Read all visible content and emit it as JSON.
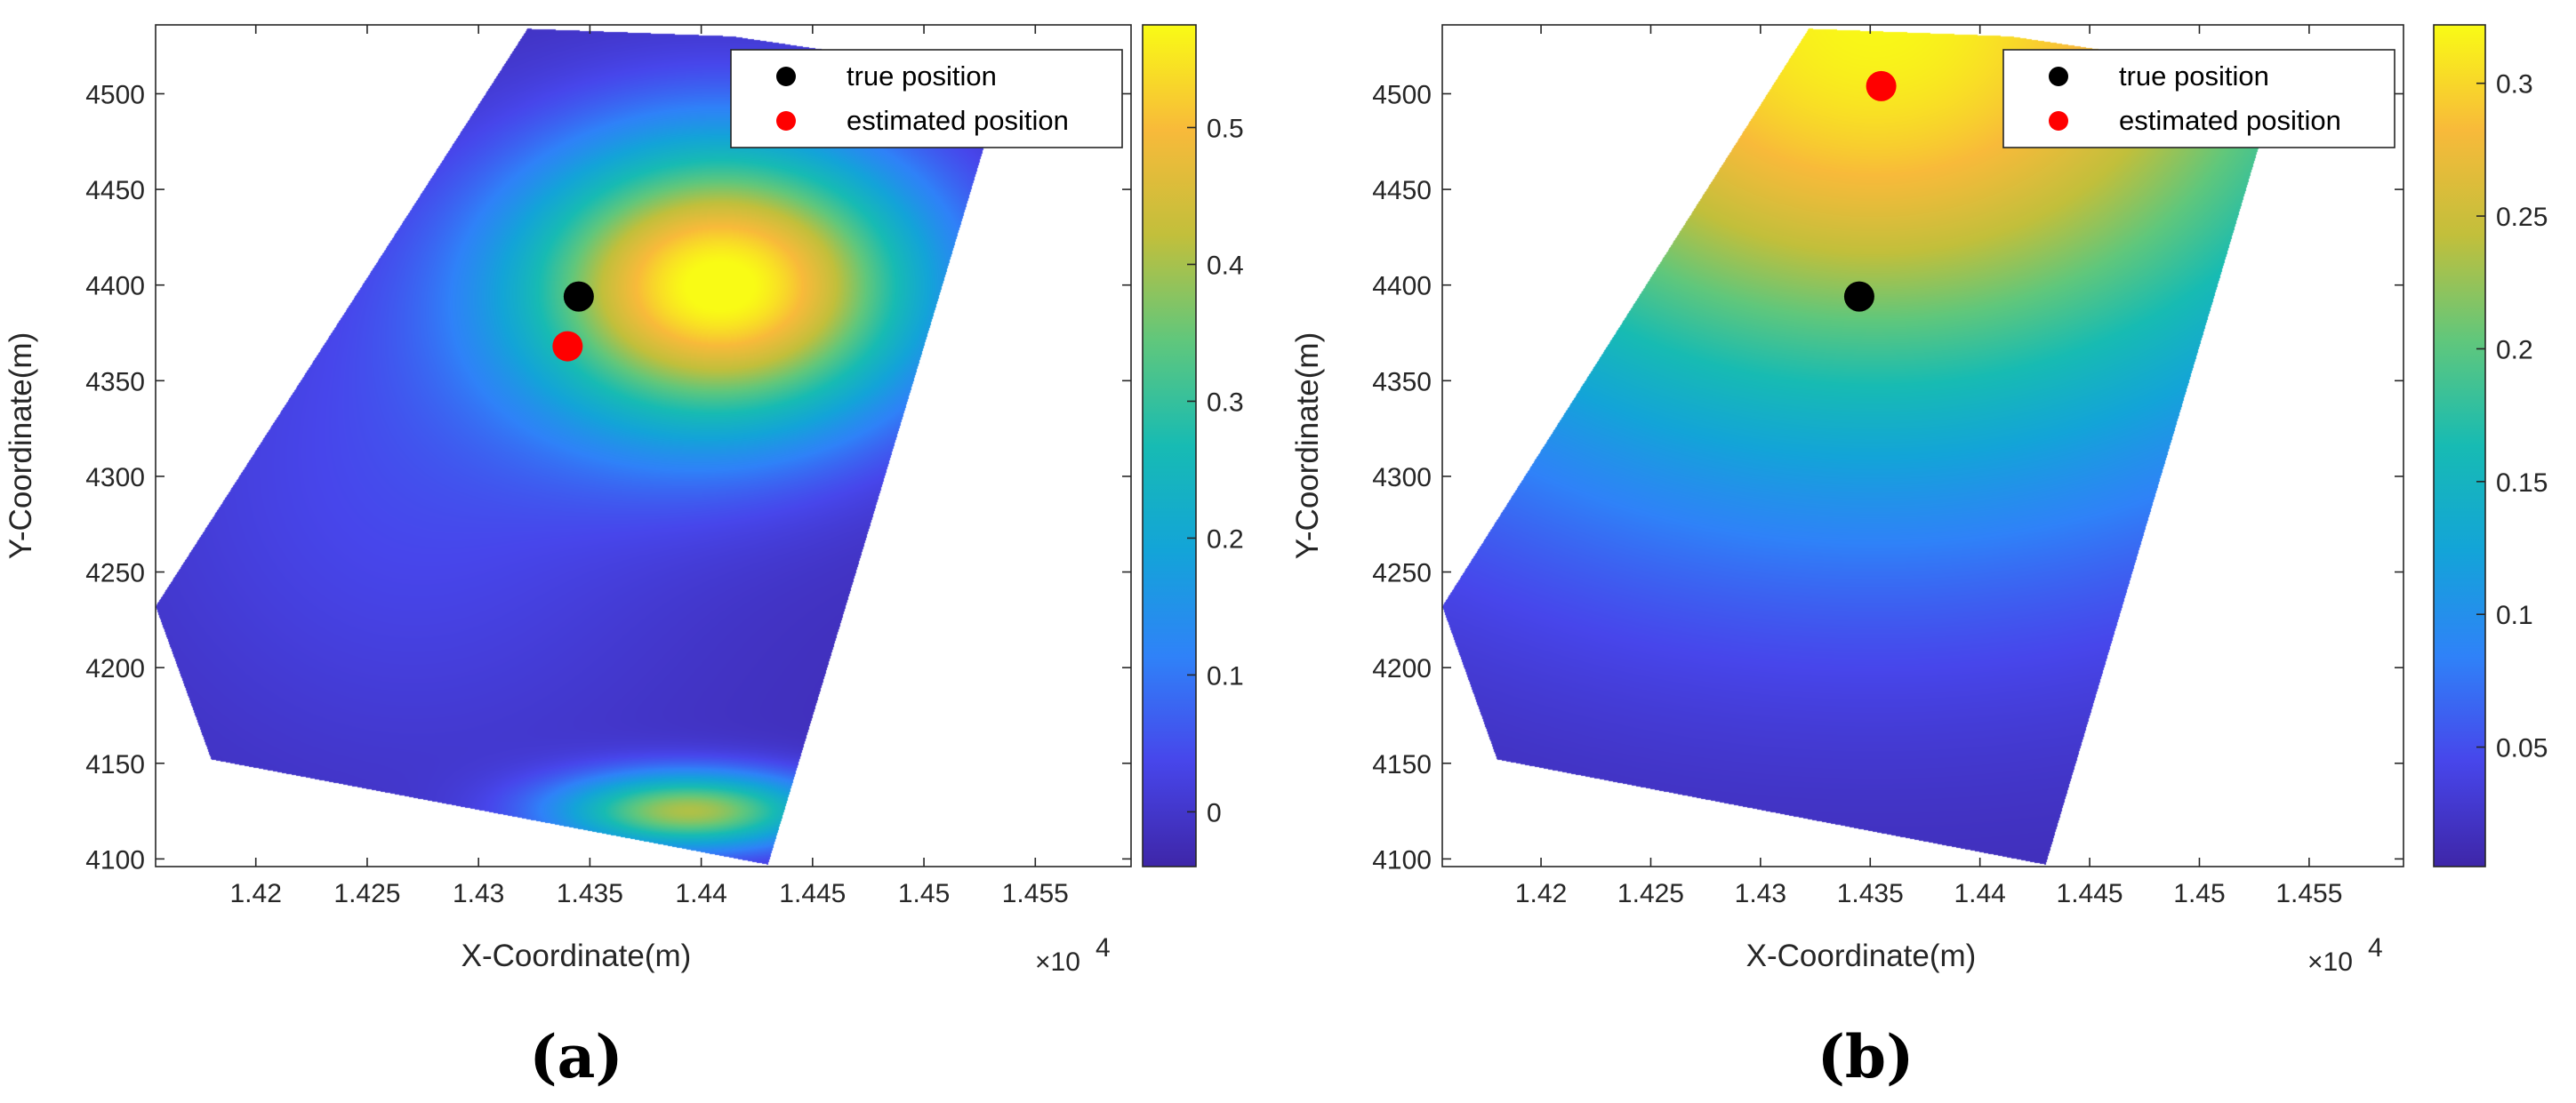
{
  "colors": {
    "true_marker": "#000000",
    "estimated_marker": "#ff0000",
    "axis": "#262626",
    "colormap": "parula"
  },
  "chart_data": [
    {
      "type": "heatmap",
      "panel_label": "(a)",
      "xlabel": "X-Coordinate(m)",
      "ylabel": "Y-Coordinate(m)",
      "x_exponent_label": "×10",
      "x_exponent_power": "4",
      "xlim": [
        14155,
        14593
      ],
      "ylim": [
        4096,
        4536
      ],
      "xticks": [
        14200,
        14250,
        14300,
        14350,
        14400,
        14450,
        14500,
        14550
      ],
      "xtick_labels": [
        "1.42",
        "1.425",
        "1.43",
        "1.435",
        "1.44",
        "1.445",
        "1.45",
        "1.455"
      ],
      "yticks": [
        4100,
        4150,
        4200,
        4250,
        4300,
        4350,
        4400,
        4450,
        4500
      ],
      "ytick_labels": [
        "4100",
        "4150",
        "4200",
        "4250",
        "4300",
        "4350",
        "4400",
        "4450",
        "4500"
      ],
      "region": [
        [
          14322,
          4534
        ],
        [
          14414,
          4530
        ],
        [
          14585,
          4501
        ],
        [
          14528,
          4476
        ],
        [
          14430,
          4097
        ],
        [
          14180,
          4152
        ],
        [
          14155,
          4232
        ]
      ],
      "colorbar": {
        "range": [
          -0.04,
          0.575
        ],
        "ticks": [
          0,
          0.1,
          0.2,
          0.3,
          0.4,
          0.5
        ],
        "tick_labels": [
          "0",
          "0.1",
          "0.2",
          "0.3",
          "0.4",
          "0.5"
        ]
      },
      "field": {
        "base": -0.02,
        "peaks": [
          {
            "x": 14410,
            "y": 4400,
            "amp": 0.6,
            "sx": 90,
            "sy": 75
          },
          {
            "x": 14395,
            "y": 4125,
            "amp": 0.42,
            "sx": 60,
            "sy": 20
          },
          {
            "x": 14270,
            "y": 4300,
            "amp": 0.06,
            "sx": 130,
            "sy": 150
          }
        ]
      },
      "true_position": {
        "x": 14345,
        "y": 4394
      },
      "estimated_position": {
        "x": 14340,
        "y": 4368
      },
      "legend": {
        "position": "top-right",
        "entries": [
          "true position",
          "estimated position"
        ]
      }
    },
    {
      "type": "heatmap",
      "panel_label": "(b)",
      "xlabel": "X-Coordinate(m)",
      "ylabel": "Y-Coordinate(m)",
      "x_exponent_label": "×10",
      "x_exponent_power": "4",
      "xlim": [
        14155,
        14593
      ],
      "ylim": [
        4096,
        4536
      ],
      "xticks": [
        14200,
        14250,
        14300,
        14350,
        14400,
        14450,
        14500,
        14550
      ],
      "xtick_labels": [
        "1.42",
        "1.425",
        "1.43",
        "1.435",
        "1.44",
        "1.445",
        "1.45",
        "1.455"
      ],
      "yticks": [
        4100,
        4150,
        4200,
        4250,
        4300,
        4350,
        4400,
        4450,
        4500
      ],
      "ytick_labels": [
        "4100",
        "4150",
        "4200",
        "4250",
        "4300",
        "4350",
        "4400",
        "4450",
        "4500"
      ],
      "region": [
        [
          14322,
          4534
        ],
        [
          14414,
          4530
        ],
        [
          14585,
          4501
        ],
        [
          14528,
          4476
        ],
        [
          14430,
          4097
        ],
        [
          14180,
          4152
        ],
        [
          14155,
          4232
        ]
      ],
      "colorbar": {
        "range": [
          0.005,
          0.322
        ],
        "ticks": [
          0.05,
          0.1,
          0.15,
          0.2,
          0.25,
          0.3
        ],
        "tick_labels": [
          "0.05",
          "0.1",
          "0.15",
          "0.2",
          "0.25",
          "0.3"
        ]
      },
      "field": {
        "base": 0.01,
        "peaks": [
          {
            "x": 14352,
            "y": 4540,
            "amp": 0.31,
            "sx": 260,
            "sy": 230
          }
        ]
      },
      "true_position": {
        "x": 14345,
        "y": 4394
      },
      "estimated_position": {
        "x": 14355,
        "y": 4504
      },
      "legend": {
        "position": "top-right",
        "entries": [
          "true position",
          "estimated position"
        ]
      }
    }
  ]
}
